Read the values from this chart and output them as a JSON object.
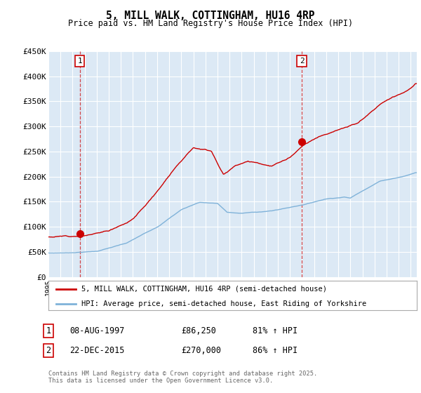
{
  "title": "5, MILL WALK, COTTINGHAM, HU16 4RP",
  "subtitle": "Price paid vs. HM Land Registry's House Price Index (HPI)",
  "ylabel_ticks": [
    "£0",
    "£50K",
    "£100K",
    "£150K",
    "£200K",
    "£250K",
    "£300K",
    "£350K",
    "£400K",
    "£450K"
  ],
  "ylim": [
    0,
    450000
  ],
  "xlim_start": 1995.0,
  "xlim_end": 2025.5,
  "bg_color": "#dce9f5",
  "grid_color": "#ffffff",
  "line1_color": "#cc0000",
  "line2_color": "#7fb2d9",
  "vline_color": "#cc0000",
  "marker1_date": 1997.6,
  "marker2_date": 2015.98,
  "marker1_value": 86250,
  "marker2_value": 270000,
  "legend_line1": "5, MILL WALK, COTTINGHAM, HU16 4RP (semi-detached house)",
  "legend_line2": "HPI: Average price, semi-detached house, East Riding of Yorkshire",
  "table_row1_num": "1",
  "table_row1_date": "08-AUG-1997",
  "table_row1_price": "£86,250",
  "table_row1_hpi": "81% ↑ HPI",
  "table_row2_num": "2",
  "table_row2_date": "22-DEC-2015",
  "table_row2_price": "£270,000",
  "table_row2_hpi": "86% ↑ HPI",
  "footnote": "Contains HM Land Registry data © Crown copyright and database right 2025.\nThis data is licensed under the Open Government Licence v3.0."
}
